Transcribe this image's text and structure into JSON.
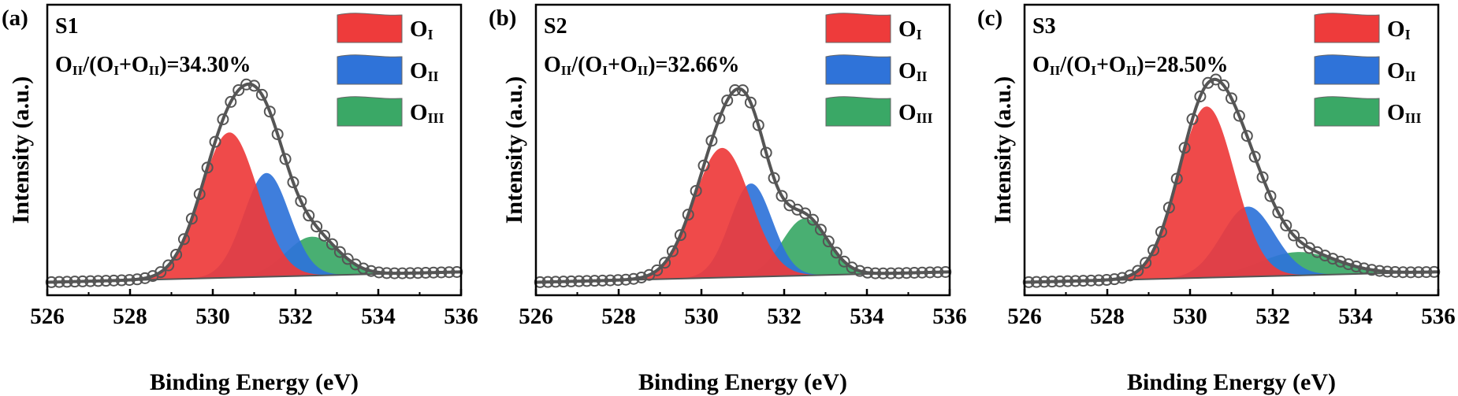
{
  "figure": {
    "panels": [
      {
        "letter": "(a)",
        "sample": "S1",
        "ratio_text": "34.30%"
      },
      {
        "letter": "(b)",
        "sample": "S2",
        "ratio_text": "32.66%"
      },
      {
        "letter": "(c)",
        "sample": "S3",
        "ratio_text": "28.50%"
      }
    ],
    "legend": [
      "O_I",
      "O_II",
      "O_III"
    ],
    "colors": {
      "O_I": "#ee3b3b",
      "O_II": "#2f73d9",
      "O_III": "#3aa866",
      "envelope": "#555555",
      "markers": "#555555",
      "axes": "#000000"
    },
    "xlabel": "Binding Energy (eV)",
    "ylabel": "Intensity (a.u.)"
  },
  "chart_data": [
    {
      "type": "area",
      "title": "S1",
      "annotation": "OII/(OI+OII)=34.30%",
      "xlabel": "Binding Energy (eV)",
      "ylabel": "Intensity (a.u.)",
      "xlim": [
        526,
        536
      ],
      "xticks": [
        526,
        528,
        530,
        532,
        534,
        536
      ],
      "ylim": [
        0,
        1.12
      ],
      "baseline": [
        0.05,
        0.09
      ],
      "legend_position": "top-right",
      "series": [
        {
          "name": "O_I",
          "kind": "gaussian",
          "center": 530.4,
          "height": 0.56,
          "fwhm": 1.6
        },
        {
          "name": "O_II",
          "kind": "gaussian",
          "center": 531.3,
          "height": 0.4,
          "fwhm": 1.3
        },
        {
          "name": "O_III",
          "kind": "gaussian",
          "center": 532.4,
          "height": 0.15,
          "fwhm": 1.5
        }
      ]
    },
    {
      "type": "area",
      "title": "S2",
      "annotation": "OII/(OI+OII)=32.66%",
      "xlabel": "Binding Energy (eV)",
      "ylabel": "Intensity (a.u.)",
      "xlim": [
        526,
        536
      ],
      "xticks": [
        526,
        528,
        530,
        532,
        534,
        536
      ],
      "ylim": [
        0,
        1.12
      ],
      "baseline": [
        0.05,
        0.09
      ],
      "legend_position": "top-right",
      "series": [
        {
          "name": "O_I",
          "kind": "gaussian",
          "center": 530.5,
          "height": 0.5,
          "fwhm": 1.6
        },
        {
          "name": "O_II",
          "kind": "gaussian",
          "center": 531.2,
          "height": 0.36,
          "fwhm": 1.2
        },
        {
          "name": "O_III",
          "kind": "gaussian",
          "center": 532.5,
          "height": 0.22,
          "fwhm": 1.3
        }
      ]
    },
    {
      "type": "area",
      "title": "S3",
      "annotation": "OII/(OI+OII)=28.50%",
      "xlabel": "Binding Energy (eV)",
      "ylabel": "Intensity (a.u.)",
      "xlim": [
        526,
        536
      ],
      "xticks": [
        526,
        528,
        530,
        532,
        534,
        536
      ],
      "ylim": [
        0,
        1.12
      ],
      "baseline": [
        0.05,
        0.09
      ],
      "legend_position": "top-right",
      "series": [
        {
          "name": "O_I",
          "kind": "gaussian",
          "center": 530.4,
          "height": 0.66,
          "fwhm": 1.6
        },
        {
          "name": "O_II",
          "kind": "gaussian",
          "center": 531.4,
          "height": 0.27,
          "fwhm": 1.5
        },
        {
          "name": "O_III",
          "kind": "gaussian",
          "center": 532.6,
          "height": 0.09,
          "fwhm": 2.2
        }
      ]
    }
  ]
}
